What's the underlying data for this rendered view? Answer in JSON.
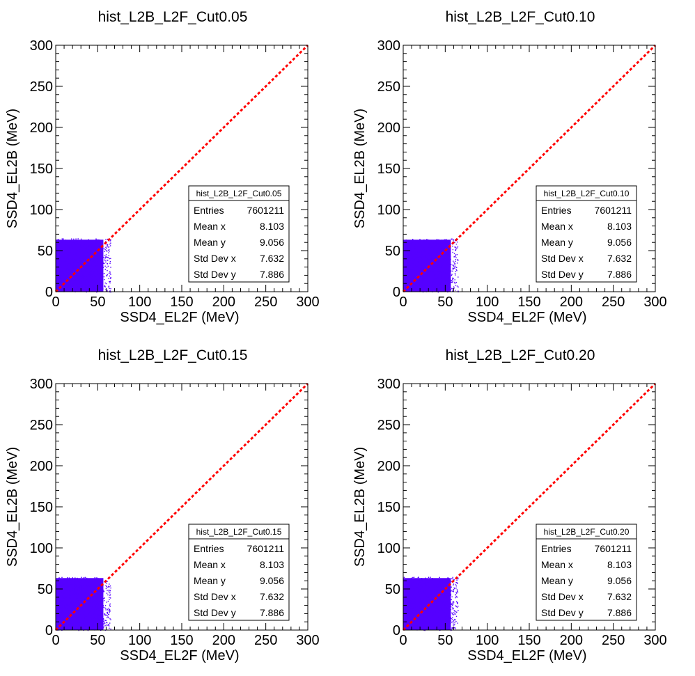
{
  "chart_data": [
    {
      "type": "scatter",
      "title": "hist_L2B_L2F_Cut0.05",
      "xlabel": "SSD4_EL2F (MeV)",
      "ylabel": "SSD4_EL2B (MeV)",
      "xlim": [
        0,
        300
      ],
      "ylim": [
        0,
        300
      ],
      "x_ticks": [
        "0",
        "50",
        "100",
        "150",
        "200",
        "250",
        "300"
      ],
      "y_ticks": [
        "0",
        "50",
        "100",
        "150",
        "200",
        "250",
        "300"
      ],
      "point_color": "#5500ff",
      "populated_region": {
        "x": [
          0,
          65
        ],
        "y": [
          0,
          65
        ]
      },
      "reference_line": {
        "x": [
          0,
          300
        ],
        "y": [
          0,
          300
        ],
        "color": "#ff0000",
        "style": "dashed"
      },
      "stats": {
        "name": "hist_L2B_L2F_Cut0.05",
        "rows": [
          {
            "label": "Entries",
            "value": "7601211"
          },
          {
            "label": "Mean x",
            "value": "8.103"
          },
          {
            "label": "Mean y",
            "value": "9.056"
          },
          {
            "label": "Std Dev x",
            "value": "7.632"
          },
          {
            "label": "Std Dev y",
            "value": "7.886"
          }
        ]
      }
    },
    {
      "type": "scatter",
      "title": "hist_L2B_L2F_Cut0.10",
      "xlabel": "SSD4_EL2F (MeV)",
      "ylabel": "SSD4_EL2B (MeV)",
      "xlim": [
        0,
        300
      ],
      "ylim": [
        0,
        300
      ],
      "x_ticks": [
        "0",
        "50",
        "100",
        "150",
        "200",
        "250",
        "300"
      ],
      "y_ticks": [
        "0",
        "50",
        "100",
        "150",
        "200",
        "250",
        "300"
      ],
      "point_color": "#5500ff",
      "populated_region": {
        "x": [
          0,
          65
        ],
        "y": [
          0,
          65
        ]
      },
      "reference_line": {
        "x": [
          0,
          300
        ],
        "y": [
          0,
          300
        ],
        "color": "#ff0000",
        "style": "dashed"
      },
      "stats": {
        "name": "hist_L2B_L2F_Cut0.10",
        "rows": [
          {
            "label": "Entries",
            "value": "7601211"
          },
          {
            "label": "Mean x",
            "value": "8.103"
          },
          {
            "label": "Mean y",
            "value": "9.056"
          },
          {
            "label": "Std Dev x",
            "value": "7.632"
          },
          {
            "label": "Std Dev y",
            "value": "7.886"
          }
        ]
      }
    },
    {
      "type": "scatter",
      "title": "hist_L2B_L2F_Cut0.15",
      "xlabel": "SSD4_EL2F (MeV)",
      "ylabel": "SSD4_EL2B (MeV)",
      "xlim": [
        0,
        300
      ],
      "ylim": [
        0,
        300
      ],
      "x_ticks": [
        "0",
        "50",
        "100",
        "150",
        "200",
        "250",
        "300"
      ],
      "y_ticks": [
        "0",
        "50",
        "100",
        "150",
        "200",
        "250",
        "300"
      ],
      "point_color": "#5500ff",
      "populated_region": {
        "x": [
          0,
          65
        ],
        "y": [
          0,
          65
        ]
      },
      "reference_line": {
        "x": [
          0,
          300
        ],
        "y": [
          0,
          300
        ],
        "color": "#ff0000",
        "style": "dashed"
      },
      "stats": {
        "name": "hist_L2B_L2F_Cut0.15",
        "rows": [
          {
            "label": "Entries",
            "value": "7601211"
          },
          {
            "label": "Mean x",
            "value": "8.103"
          },
          {
            "label": "Mean y",
            "value": "9.056"
          },
          {
            "label": "Std Dev x",
            "value": "7.632"
          },
          {
            "label": "Std Dev y",
            "value": "7.886"
          }
        ]
      }
    },
    {
      "type": "scatter",
      "title": "hist_L2B_L2F_Cut0.20",
      "xlabel": "SSD4_EL2F (MeV)",
      "ylabel": "SSD4_EL2B (MeV)",
      "xlim": [
        0,
        300
      ],
      "ylim": [
        0,
        300
      ],
      "x_ticks": [
        "0",
        "50",
        "100",
        "150",
        "200",
        "250",
        "300"
      ],
      "y_ticks": [
        "0",
        "50",
        "100",
        "150",
        "200",
        "250",
        "300"
      ],
      "point_color": "#5500ff",
      "populated_region": {
        "x": [
          0,
          65
        ],
        "y": [
          0,
          65
        ]
      },
      "reference_line": {
        "x": [
          0,
          300
        ],
        "y": [
          0,
          300
        ],
        "color": "#ff0000",
        "style": "dashed"
      },
      "stats": {
        "name": "hist_L2B_L2F_Cut0.20",
        "rows": [
          {
            "label": "Entries",
            "value": "7601211"
          },
          {
            "label": "Mean x",
            "value": "8.103"
          },
          {
            "label": "Mean y",
            "value": "9.056"
          },
          {
            "label": "Std Dev x",
            "value": "7.632"
          },
          {
            "label": "Std Dev y",
            "value": "7.886"
          }
        ]
      }
    }
  ]
}
